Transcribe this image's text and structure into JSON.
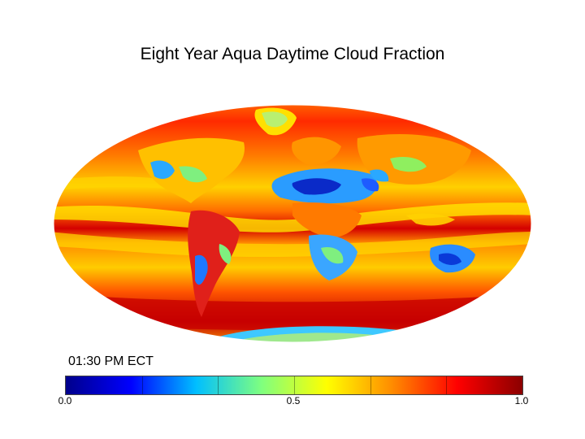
{
  "map": {
    "title": "Eight Year Aqua Daytime Cloud Fraction",
    "time_label": "01:30 PM ECT",
    "legend": {
      "min_label": "0.0",
      "mid_label": "0.5",
      "max_label": "1.0",
      "colors": [
        "#00008b",
        "#0000ff",
        "#00bfff",
        "#7fff7f",
        "#ffff00",
        "#ff8c00",
        "#ff0000",
        "#8b0000"
      ]
    }
  }
}
